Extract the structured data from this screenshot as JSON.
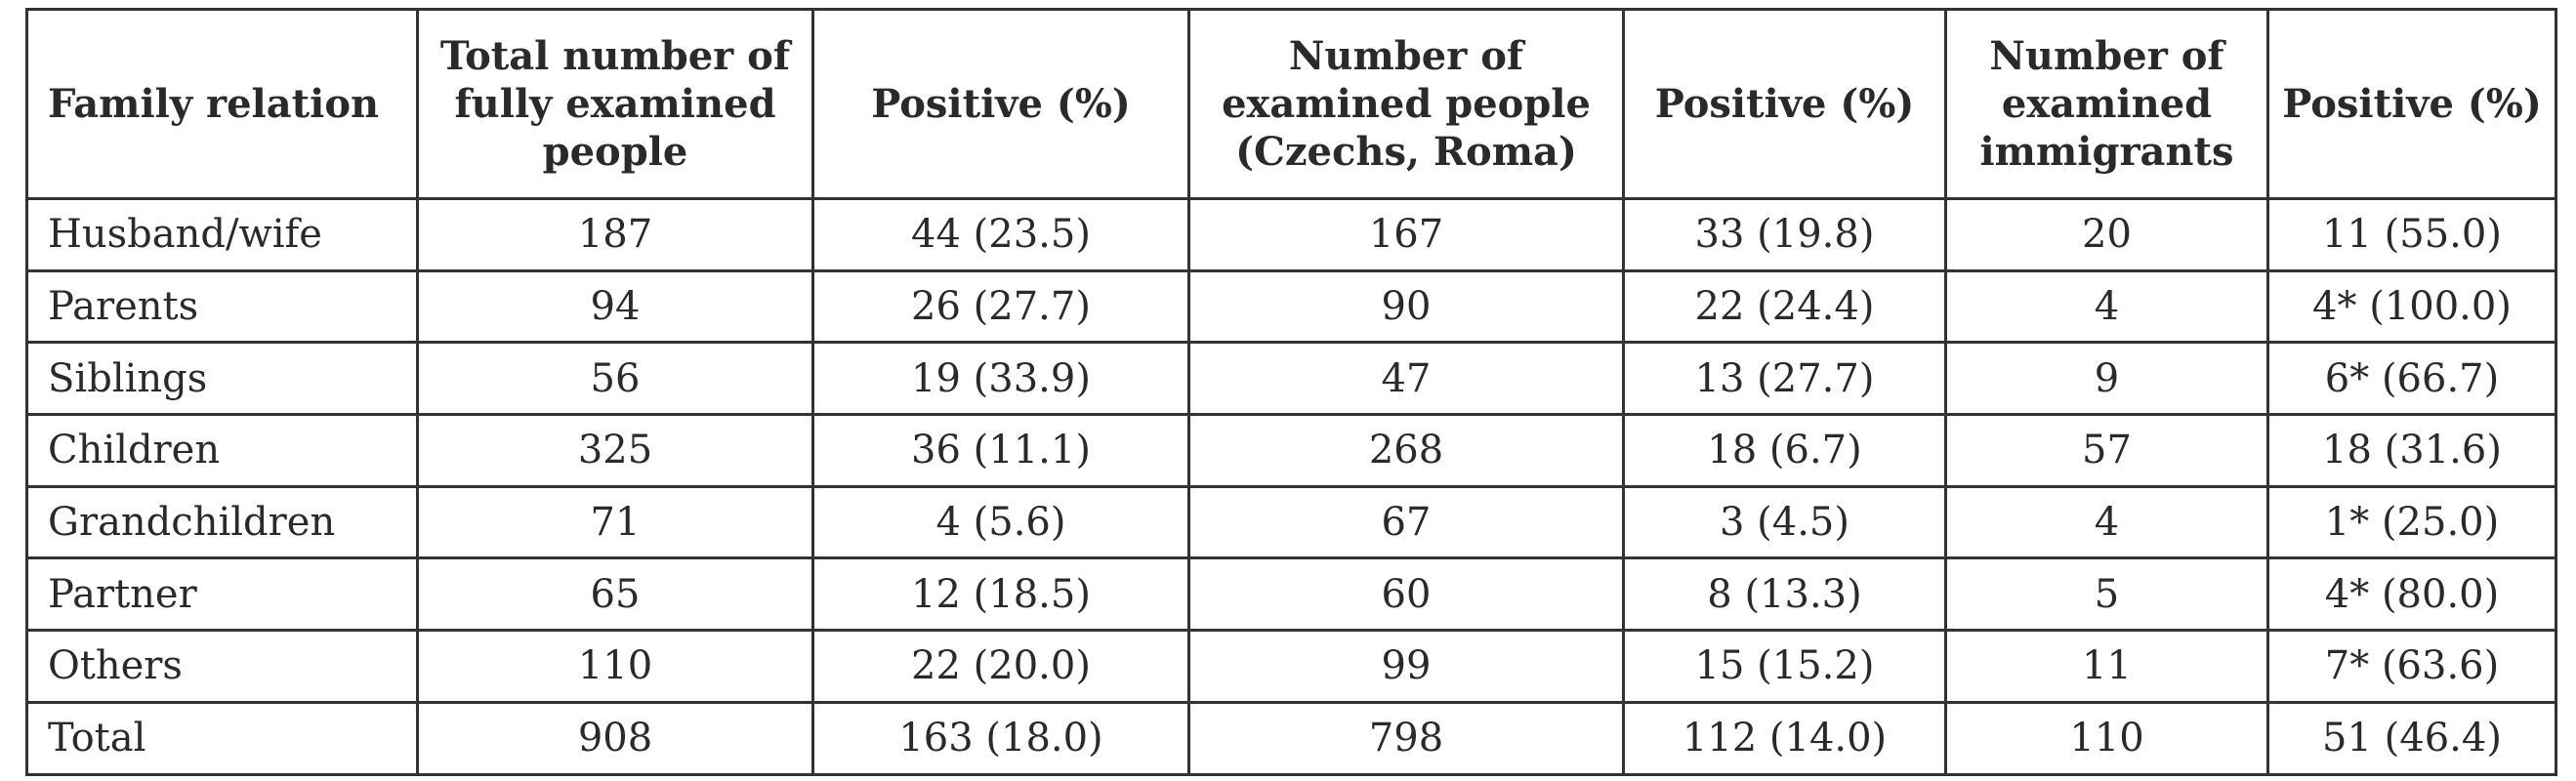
{
  "table": {
    "headers": [
      "Family relation",
      "Total number of fully examined people",
      "Positive (%)",
      "Number of examined people (Czechs, Roma)",
      "Positive (%)",
      "Number of examined immigrants",
      "Positive (%)"
    ],
    "rows": [
      [
        "Husband/wife",
        "187",
        "44 (23.5)",
        "167",
        "33 (19.8)",
        "20",
        "11 (55.0)"
      ],
      [
        "Parents",
        "94",
        "26 (27.7)",
        "90",
        "22 (24.4)",
        "4",
        "4* (100.0)"
      ],
      [
        "Siblings",
        "56",
        "19 (33.9)",
        "47",
        "13 (27.7)",
        "9",
        "6* (66.7)"
      ],
      [
        "Children",
        "325",
        "36 (11.1)",
        "268",
        "18 (6.7)",
        "57",
        "18 (31.6)"
      ],
      [
        "Grandchildren",
        "71",
        "4 (5.6)",
        "67",
        "3 (4.5)",
        "4",
        "1* (25.0)"
      ],
      [
        "Partner",
        "65",
        "12 (18.5)",
        "60",
        "8 (13.3)",
        "5",
        "4* (80.0)"
      ],
      [
        "Others",
        "110",
        "22 (20.0)",
        "99",
        "15 (15.2)",
        "11",
        "7* (63.6)"
      ],
      [
        "Total",
        "908",
        "163 (18.0)",
        "798",
        "112 (14.0)",
        "110",
        "51 (46.4)"
      ]
    ]
  }
}
